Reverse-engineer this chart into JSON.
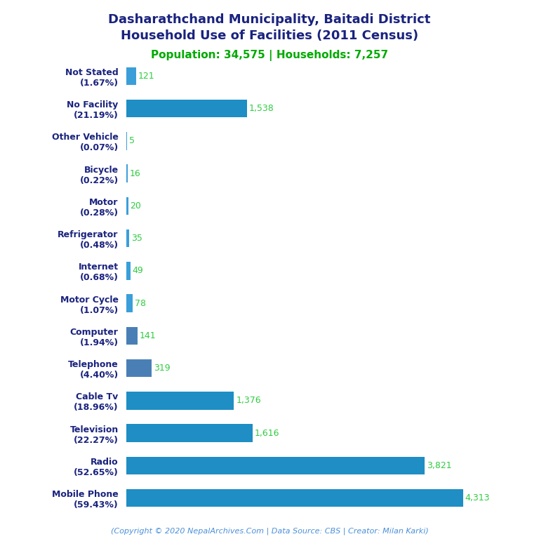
{
  "title_line1": "Dasharathchand Municipality, Baitadi District",
  "title_line2": "Household Use of Facilities (2011 Census)",
  "subtitle": "Population: 34,575 | Households: 7,257",
  "footer": "(Copyright © 2020 NepalArchives.Com | Data Source: CBS | Creator: Milan Karki)",
  "categories": [
    "Not Stated\n(1.67%)",
    "No Facility\n(21.19%)",
    "Other Vehicle\n(0.07%)",
    "Bicycle\n(0.22%)",
    "Motor\n(0.28%)",
    "Refrigerator\n(0.48%)",
    "Internet\n(0.68%)",
    "Motor Cycle\n(1.07%)",
    "Computer\n(1.94%)",
    "Telephone\n(4.40%)",
    "Cable Tv\n(18.96%)",
    "Television\n(22.27%)",
    "Radio\n(52.65%)",
    "Mobile Phone\n(59.43%)"
  ],
  "values": [
    121,
    1538,
    5,
    16,
    20,
    35,
    49,
    78,
    141,
    319,
    1376,
    1616,
    3821,
    4313
  ],
  "bar_colors": [
    "#3a9fd9",
    "#1e8ec4",
    "#3a9fd9",
    "#3a9fd9",
    "#3a9fd9",
    "#3a9fd9",
    "#3a9fd9",
    "#3a9fd9",
    "#4a7fb5",
    "#4a7fb5",
    "#1e8ec4",
    "#1e8ec4",
    "#1e8ec4",
    "#1e8ec4"
  ],
  "value_color": "#2ecc40",
  "title_color": "#1a237e",
  "subtitle_color": "#00aa00",
  "footer_color": "#4a90d9",
  "label_color": "#1a237e",
  "bg_color": "#ffffff",
  "xlim": [
    0,
    4800
  ],
  "title_fontsize": 13,
  "subtitle_fontsize": 11,
  "label_fontsize": 9,
  "value_fontsize": 9,
  "footer_fontsize": 8
}
